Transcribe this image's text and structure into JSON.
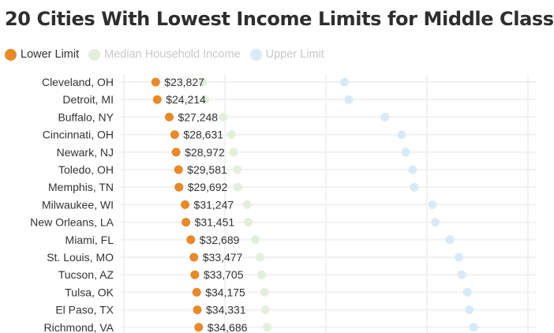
{
  "chart_data": {
    "type": "scatter",
    "title": "20 Cities With Lowest Income Limits for Middle Class",
    "legend": [
      {
        "name": "Lower Limit",
        "color": "#e8892a",
        "active": true
      },
      {
        "name": "Median Household Income",
        "color": "#e3efdc",
        "active": false
      },
      {
        "name": "Upper Limit",
        "color": "#d8eaf7",
        "active": false
      }
    ],
    "legend_text_colors": {
      "active": "#333333",
      "inactive": "#c9c9c9"
    },
    "legend_placement": "top-left",
    "orientation": "horizontal",
    "grid": true,
    "xlim": [
      15000,
      120000
    ],
    "categories": [
      "Cleveland, OH",
      "Detroit, MI",
      "Buffalo, NY",
      "Cincinnati, OH",
      "Newark, NJ",
      "Toledo, OH",
      "Memphis, TN",
      "Milwaukee, WI",
      "New Orleans, LA",
      "Miami, FL",
      "St. Louis, MO",
      "Tucson, AZ",
      "Tulsa, OK",
      "El Paso, TX",
      "Richmond, VA"
    ],
    "series": [
      {
        "name": "Lower Limit",
        "color": "#e8892a",
        "values": [
          23827,
          24214,
          27248,
          28631,
          28972,
          29581,
          29692,
          31247,
          31451,
          32689,
          33477,
          33705,
          34175,
          34331,
          34686
        ]
      },
      {
        "name": "Median Household Income",
        "color": "#e3efdc",
        "values": [
          35700,
          36300,
          40900,
          42900,
          43500,
          44400,
          44500,
          46900,
          47200,
          49000,
          50200,
          50600,
          51300,
          51500,
          52000
        ]
      },
      {
        "name": "Upper Limit",
        "color": "#d8eaf7",
        "values": [
          71500,
          72600,
          81700,
          85900,
          86900,
          88700,
          89100,
          93700,
          94400,
          98100,
          100400,
          101100,
          102500,
          103000,
          104100
        ]
      }
    ],
    "data_labels": [
      "$23,827",
      "$24,214",
      "$27,248",
      "$28,631",
      "$28,972",
      "$29,581",
      "$29,692",
      "$31,247",
      "$31,451",
      "$32,689",
      "$33,477",
      "$33,705",
      "$34,175",
      "$34,331",
      "$34,686"
    ]
  }
}
